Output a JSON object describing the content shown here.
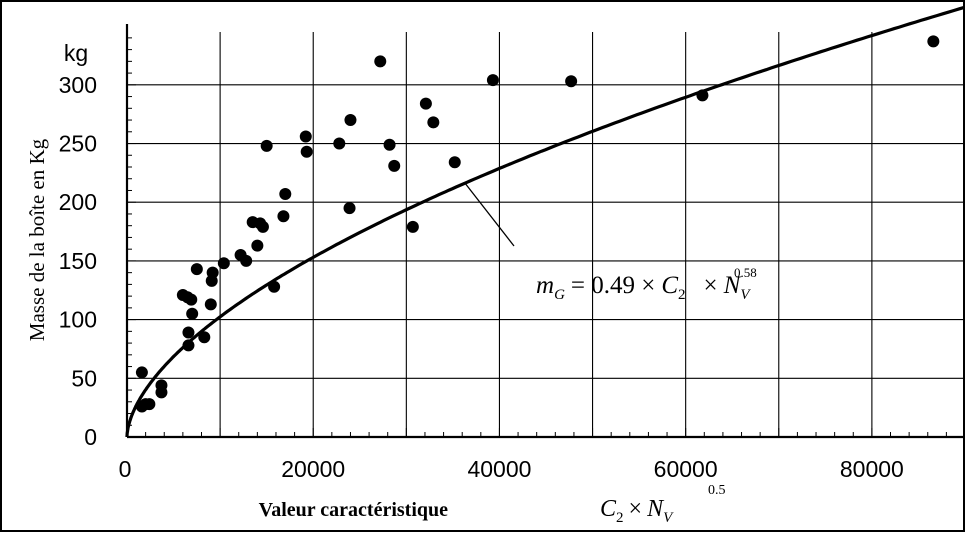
{
  "chart_data": {
    "type": "scatter",
    "title": "",
    "xlabel": "Valeur caractéristique",
    "xlabel_math": {
      "c": "C",
      "c_sub": "2",
      "times": "×",
      "n": "N",
      "n_sub": "V",
      "exponent": "0.5"
    },
    "ylabel": "Masse de la boîte en Kg",
    "y_unit": "kg",
    "xlim": [
      0,
      90000
    ],
    "ylim": [
      0,
      345
    ],
    "x_ticks": [
      0,
      20000,
      40000,
      60000,
      80000
    ],
    "x_tick_labels": [
      "0",
      "20000",
      "40000",
      "60000",
      "80000"
    ],
    "y_ticks": [
      0,
      50,
      100,
      150,
      200,
      250,
      300
    ],
    "y_tick_labels": [
      "0",
      "50",
      "100",
      "150",
      "200",
      "250",
      "300"
    ],
    "grid": true,
    "series": [
      {
        "kind": "scatter",
        "points": [
          [
            1600,
            55
          ],
          [
            1600,
            26
          ],
          [
            2000,
            28
          ],
          [
            2400,
            28
          ],
          [
            3700,
            44
          ],
          [
            3700,
            38
          ],
          [
            6000,
            121
          ],
          [
            6500,
            119
          ],
          [
            6900,
            117
          ],
          [
            6600,
            89
          ],
          [
            6600,
            78
          ],
          [
            7000,
            105
          ],
          [
            7500,
            143
          ],
          [
            8300,
            85
          ],
          [
            9000,
            113
          ],
          [
            9100,
            133
          ],
          [
            9200,
            140
          ],
          [
            10400,
            148
          ],
          [
            12200,
            155
          ],
          [
            12800,
            150
          ],
          [
            13500,
            183
          ],
          [
            14000,
            163
          ],
          [
            14300,
            182
          ],
          [
            14600,
            179
          ],
          [
            15000,
            248
          ],
          [
            15800,
            128
          ],
          [
            16800,
            188
          ],
          [
            17000,
            207
          ],
          [
            19200,
            256
          ],
          [
            19300,
            243
          ],
          [
            22800,
            250
          ],
          [
            23900,
            195
          ],
          [
            24000,
            270
          ],
          [
            27200,
            320
          ],
          [
            28200,
            249
          ],
          [
            28700,
            231
          ],
          [
            30700,
            179
          ],
          [
            32100,
            284
          ],
          [
            32900,
            268
          ],
          [
            35200,
            234
          ],
          [
            39300,
            304
          ],
          [
            47700,
            303
          ],
          [
            61800,
            291
          ],
          [
            86600,
            337
          ]
        ]
      },
      {
        "kind": "curve",
        "coef": 0.49,
        "exponent": 0.58
      }
    ],
    "annotation": {
      "m": "m",
      "m_sub": "G",
      "equals": "= 0.49 ×",
      "c": "C",
      "c_exp": "0.58",
      "c_sub": "2",
      "times": "×",
      "n": "N",
      "n_sub": "V",
      "pointer_x": 36300
    }
  }
}
